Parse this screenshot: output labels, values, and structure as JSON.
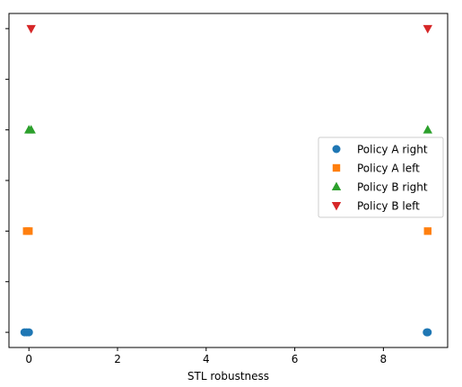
{
  "chart_data": {
    "type": "scatter",
    "title": "",
    "xlabel": "STL robustness",
    "ylabel": "",
    "xlim": [
      -0.45,
      9.45
    ],
    "ylim": [
      -0.15,
      3.15
    ],
    "xticks": [
      0,
      2,
      4,
      6,
      8
    ],
    "yticks": [
      0,
      1,
      2,
      3
    ],
    "ytick_labels_visible": false,
    "grid": false,
    "legend_placement": "center-right",
    "series": [
      {
        "name": "Policy A right",
        "color": "#1f77b4",
        "marker": "circle",
        "points": [
          [
            -0.1,
            0
          ],
          [
            -0.05,
            0
          ],
          [
            0.0,
            0
          ],
          [
            8.98,
            0
          ],
          [
            9.0,
            0
          ]
        ]
      },
      {
        "name": "Policy A left",
        "color": "#ff7f0e",
        "marker": "square",
        "points": [
          [
            -0.05,
            1
          ],
          [
            0.0,
            1
          ],
          [
            9.0,
            1
          ]
        ]
      },
      {
        "name": "Policy B right",
        "color": "#2ca02c",
        "marker": "triangle-up",
        "points": [
          [
            0.0,
            2
          ],
          [
            0.05,
            2
          ],
          [
            9.0,
            2
          ]
        ]
      },
      {
        "name": "Policy B left",
        "color": "#d62728",
        "marker": "triangle-down",
        "points": [
          [
            0.05,
            3
          ],
          [
            9.0,
            3
          ]
        ]
      }
    ]
  }
}
